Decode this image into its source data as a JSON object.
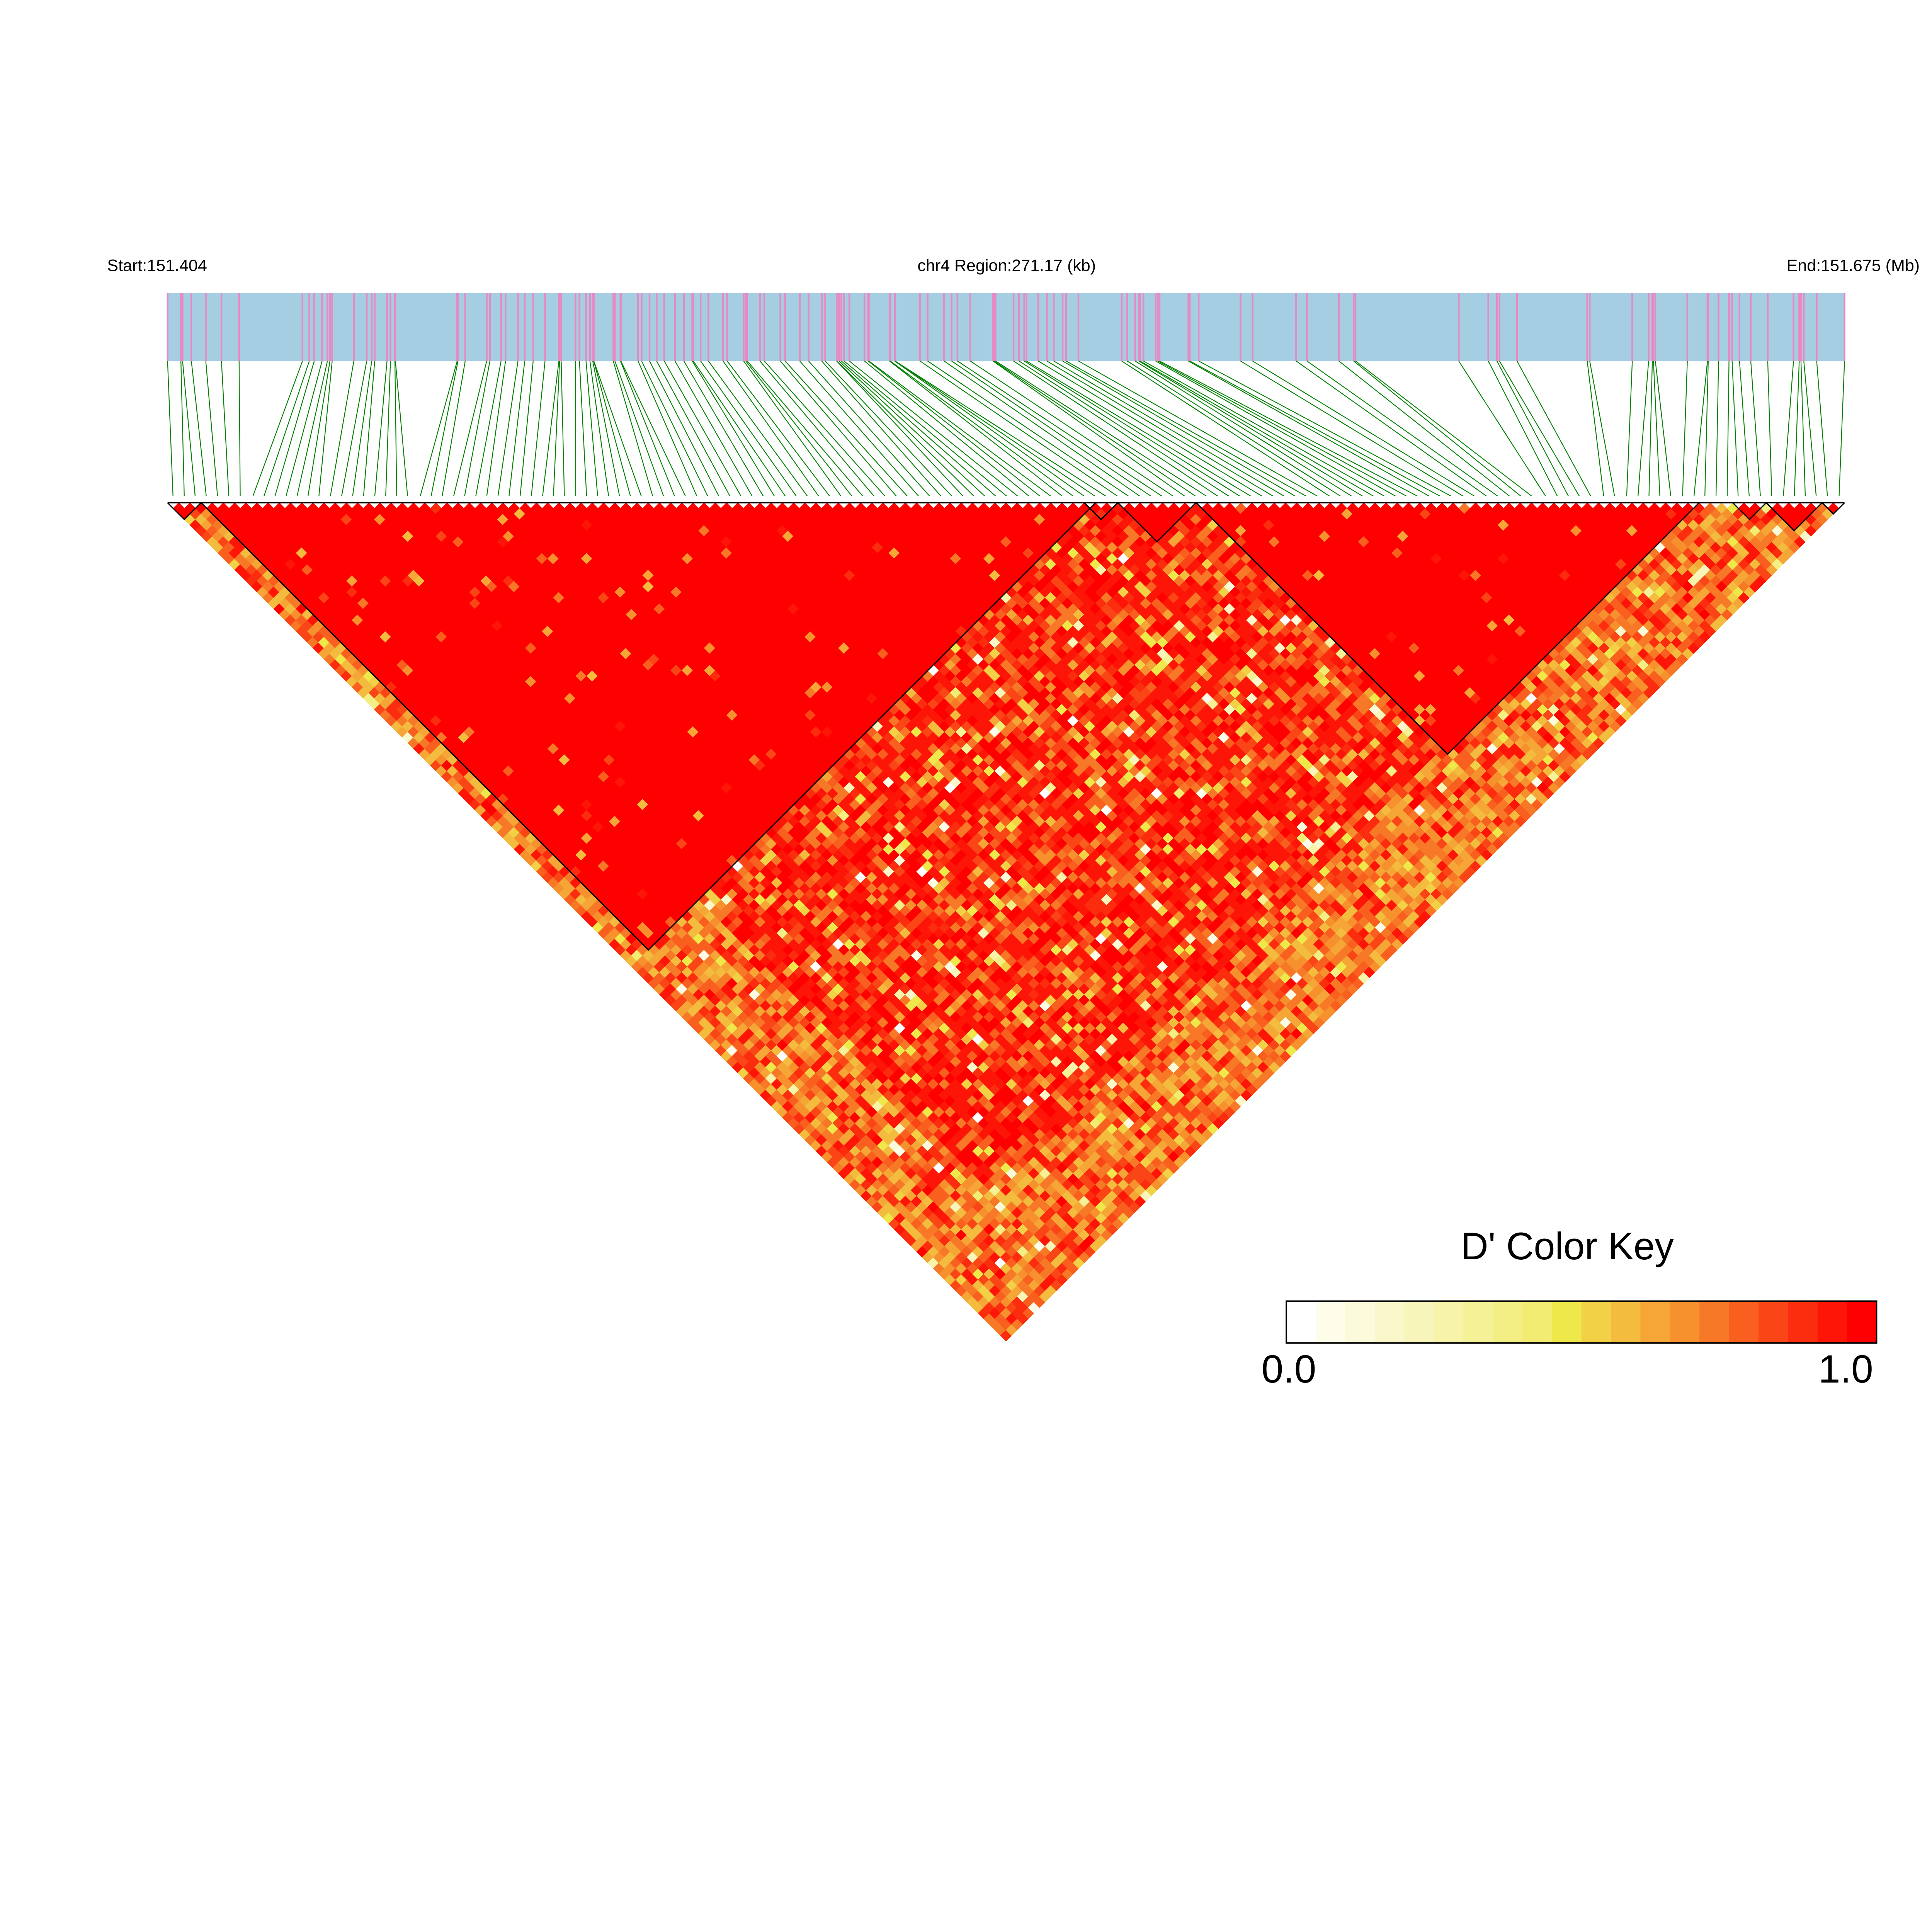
{
  "chart_data": {
    "type": "heatmap",
    "subtype": "LD triangle heatmap (D')",
    "header": {
      "start_label": "Start:151.404",
      "region_label": "chr4 Region:271.17 (kb)",
      "end_label": "End:151.675 (Mb)"
    },
    "chromosome": "chr4",
    "region_start_mb": 151.404,
    "region_end_mb": 151.675,
    "region_size_kb": 271.17,
    "colors": {
      "gene_bar_background": "#a6cee3",
      "snp_marker": "#e78ac3",
      "snp_link_lines": "#008000",
      "block_outline": "#000000"
    },
    "color_key": {
      "title": "D' Color Key",
      "min_label": "0.0",
      "max_label": "1.0",
      "range": [
        0.0,
        1.0
      ],
      "bins": [
        "#ffffff",
        "#fdfde9",
        "#fbfadb",
        "#faf8cb",
        "#f8f5ba",
        "#f7f3a8",
        "#f5f196",
        "#f3ef84",
        "#f2ed72",
        "#efe84a",
        "#f2d146",
        "#f3bc3e",
        "#f5a636",
        "#f6912e",
        "#f77826",
        "#f95f1e",
        "#fa4616",
        "#fc2d0e",
        "#fd1607",
        "#ff0000"
      ]
    },
    "grid": false,
    "legend_placement": "bottom-right"
  }
}
